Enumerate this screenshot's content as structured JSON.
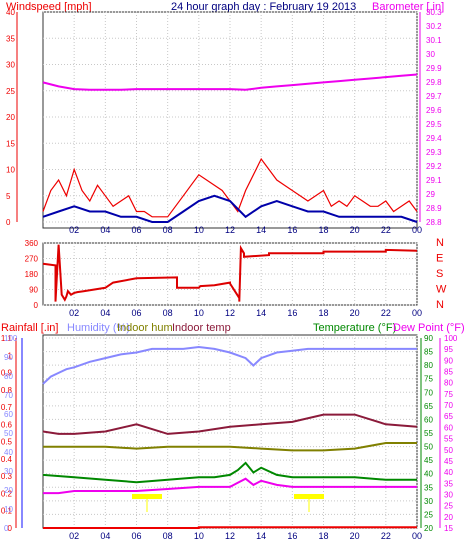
{
  "header": {
    "left": "Windspeed [mph]",
    "center": "24 hour graph day : February 19 2013",
    "right": "Barometer [.in]"
  },
  "legend_bottom": {
    "rainfall": "Rainfall [.in]",
    "humidity": "Humidity (%)",
    "indoor_hum": "Indoor hum",
    "indoor_temp": "Indoor temp",
    "temperature": "Temperature (°F)",
    "dew_point": "Dew Point (°F)"
  },
  "colors": {
    "windspeed": "#ee0000",
    "wind_avg": "#0000aa",
    "barometer": "#ee00ee",
    "direction": "#dd0000",
    "rainfall": "#ee0000",
    "humidity": "#8888ff",
    "indoor_hum": "#808000",
    "indoor_temp": "#8b1a3a",
    "temperature": "#008800",
    "dew_point": "#ee00ee",
    "title": "#000080",
    "marker": "#ffff00"
  },
  "chart_data": [
    {
      "type": "line",
      "title": "24 hour graph day : February 19 2013",
      "x_ticks": [
        "02",
        "04",
        "06",
        "08",
        "10",
        "12",
        "14",
        "16",
        "18",
        "20",
        "22",
        "00"
      ],
      "axes": {
        "left": {
          "label": "Windspeed [mph]",
          "ticks": [
            "0",
            "5",
            "10",
            "15",
            "20",
            "25",
            "30",
            "35",
            "40"
          ],
          "ylim": [
            0,
            40
          ]
        },
        "right": {
          "label": "Barometer [.in]",
          "ticks": [
            "28.8",
            "28.9",
            "29",
            "29.1",
            "29.2",
            "29.3",
            "29.4",
            "29.5",
            "29.6",
            "29.7",
            "29.8",
            "29.9",
            "30",
            "30.1",
            "30.2",
            "30.3"
          ],
          "ylim": [
            28.78,
            30.36
          ]
        }
      },
      "series": [
        {
          "key": "barometer",
          "axis": "right",
          "x": [
            0,
            1,
            2,
            3,
            4,
            5,
            6,
            7,
            8,
            9,
            10,
            11,
            12,
            13,
            14,
            15,
            16,
            17,
            18,
            19,
            20,
            21,
            22,
            23,
            24
          ],
          "values": [
            29.83,
            29.8,
            29.78,
            29.775,
            29.775,
            29.775,
            29.78,
            29.78,
            29.78,
            29.78,
            29.78,
            29.78,
            29.78,
            29.775,
            29.79,
            29.8,
            29.81,
            29.82,
            29.83,
            29.84,
            29.85,
            29.86,
            29.87,
            29.88,
            29.89
          ]
        },
        {
          "key": "windspeed",
          "axis": "left",
          "x": [
            0,
            0.5,
            1,
            1.5,
            2,
            2.5,
            3,
            3.5,
            4,
            4.5,
            5,
            5.5,
            6,
            6.5,
            7,
            7.5,
            8,
            8.5,
            9,
            9.5,
            10,
            10.5,
            11,
            11.5,
            12,
            12.5,
            13,
            13.5,
            14,
            14.5,
            15,
            15.5,
            16,
            16.5,
            17,
            17.5,
            18,
            18.5,
            19,
            19.5,
            20,
            20.5,
            21,
            21.5,
            22,
            22.5,
            23,
            23.5,
            24
          ],
          "values": [
            2,
            6,
            8,
            5,
            10,
            6,
            4,
            7,
            5,
            3,
            4,
            5,
            2,
            2,
            1,
            1,
            1,
            3,
            5,
            7,
            9,
            8,
            7,
            6,
            4,
            2,
            6,
            9,
            12,
            10,
            8,
            7,
            6,
            5,
            4,
            5,
            6,
            3,
            4,
            3,
            5,
            4,
            3,
            3,
            4,
            2,
            3,
            4,
            2
          ]
        },
        {
          "key": "wind_avg",
          "axis": "left",
          "x": [
            0,
            1,
            2,
            3,
            4,
            5,
            6,
            7,
            8,
            9,
            10,
            11,
            12,
            13,
            14,
            15,
            16,
            17,
            18,
            19,
            20,
            21,
            22,
            23,
            24
          ],
          "values": [
            1,
            2,
            3,
            2,
            2,
            1,
            1,
            0,
            0,
            2,
            4,
            5,
            4,
            1,
            3,
            4,
            3,
            2,
            2,
            1,
            1,
            1,
            1,
            1,
            0
          ]
        }
      ]
    },
    {
      "type": "line",
      "title": "",
      "x_ticks": [
        "02",
        "04",
        "06",
        "08",
        "10",
        "12",
        "14",
        "16",
        "18",
        "20",
        "22",
        "00"
      ],
      "axes": {
        "left": {
          "label": "",
          "ticks": [
            "0",
            "90",
            "180",
            "270",
            "360"
          ],
          "ylim": [
            0,
            360
          ]
        },
        "right": {
          "label": "",
          "ticks": [
            "N",
            "W",
            "S",
            "E",
            "N"
          ]
        }
      },
      "series": [
        {
          "key": "direction",
          "axis": "left",
          "x": [
            0,
            0.8,
            0.8,
            1,
            1.2,
            1.4,
            1.5,
            1.6,
            1.8,
            2,
            2.2,
            2.6,
            2.6,
            4,
            4.5,
            4.5,
            6,
            6,
            8.6,
            8.6,
            10,
            10.1,
            11,
            12,
            12,
            12.6,
            12.6,
            12.7,
            12.9,
            12.9,
            14.5,
            14.5,
            18,
            18,
            22,
            22,
            24
          ],
          "values": [
            240,
            230,
            20,
            350,
            60,
            30,
            50,
            80,
            60,
            70,
            75,
            80,
            80,
            100,
            130,
            130,
            155,
            155,
            160,
            100,
            100,
            110,
            115,
            130,
            125,
            40,
            20,
            330,
            300,
            280,
            290,
            300,
            300,
            310,
            310,
            320,
            315
          ]
        }
      ]
    },
    {
      "type": "line",
      "title": "",
      "x_ticks": [
        "02",
        "04",
        "06",
        "08",
        "10",
        "12",
        "14",
        "16",
        "18",
        "20",
        "22",
        "00"
      ],
      "axes": {
        "left_rain": {
          "label": "Rainfall [.in]",
          "ticks": [
            "0",
            "0.1",
            "0.2",
            "0.3",
            "0.4",
            "0.5",
            "0.6",
            "0.7",
            "0.8",
            "0.9",
            "1",
            "1.1"
          ],
          "ylim": [
            0,
            1.15
          ]
        },
        "left_humidity": {
          "label": "Humidity (%)",
          "ticks": [
            "0",
            "10",
            "20",
            "30",
            "40",
            "50",
            "60",
            "70",
            "80",
            "90",
            "100"
          ],
          "ylim": [
            0,
            104.5
          ]
        },
        "right_temp": {
          "label": "Temperature (°F)",
          "ticks": [
            "20",
            "25",
            "30",
            "35",
            "40",
            "45",
            "50",
            "55",
            "60",
            "65",
            "70",
            "75",
            "80",
            "85",
            "90"
          ],
          "ylim": [
            13,
            93
          ]
        },
        "right_dew": {
          "label": "Dew Point (°F)",
          "ticks": [
            "15",
            "20",
            "25",
            "30",
            "35",
            "40",
            "45",
            "50",
            "55",
            "60",
            "65",
            "70",
            "75",
            "80",
            "85",
            "90",
            "95",
            "100"
          ],
          "ylim": [
            10,
            104
          ]
        }
      },
      "series": [
        {
          "name": "Humidity (%)",
          "key": "humidity",
          "axis": "left_humidity",
          "x": [
            0,
            0.5,
            1,
            1.5,
            2,
            3,
            4,
            5,
            6,
            7,
            8,
            9,
            10,
            11,
            12,
            13,
            13.5,
            14,
            15,
            16,
            17,
            18,
            19,
            20,
            21,
            22,
            23,
            24
          ],
          "values": [
            78,
            82,
            84,
            86,
            87,
            90,
            92,
            94,
            95,
            97,
            97,
            97,
            98,
            97,
            95,
            92,
            88,
            92,
            95,
            96,
            97,
            97,
            97,
            97,
            97,
            97,
            97,
            97
          ]
        },
        {
          "name": "Indoor hum",
          "key": "indoor_hum",
          "axis": "left_humidity",
          "x": [
            0,
            2,
            4,
            6,
            8,
            10,
            12,
            14,
            16,
            18,
            20,
            22,
            24
          ],
          "values": [
            44,
            44,
            44,
            43,
            44,
            44,
            44,
            43,
            42,
            42,
            43,
            46,
            46
          ]
        },
        {
          "name": "Indoor temp",
          "key": "indoor_temp",
          "axis": "right_temp",
          "x": [
            0,
            1,
            2,
            4,
            6,
            8,
            10,
            12,
            14,
            16,
            18,
            19,
            20,
            21,
            22,
            24
          ],
          "values": [
            53,
            52,
            52,
            53,
            56,
            52,
            53,
            55,
            56,
            57,
            60,
            60,
            60,
            58,
            56,
            55
          ]
        },
        {
          "name": "Temperature (°F)",
          "key": "temperature",
          "axis": "right_temp",
          "x": [
            0,
            2,
            4,
            6,
            8,
            10,
            11,
            12,
            12.5,
            13,
            13.5,
            14,
            15,
            16,
            18,
            20,
            22,
            24
          ],
          "values": [
            35,
            34,
            33,
            32,
            33,
            34,
            34,
            35,
            37,
            40,
            36,
            38,
            35,
            34,
            34,
            34,
            33,
            33
          ]
        },
        {
          "name": "Dew Point (°F)",
          "key": "dew_point",
          "axis": "right_dew",
          "x": [
            0,
            1,
            2,
            4,
            6,
            8,
            10,
            12,
            12.5,
            13,
            13.5,
            14,
            15,
            16,
            18,
            20,
            22,
            24
          ],
          "values": [
            27,
            27,
            28,
            28,
            28,
            29,
            30,
            30,
            32,
            34,
            31,
            33,
            31,
            30,
            30,
            30,
            30,
            30
          ]
        },
        {
          "name": "Rainfall [.in]",
          "key": "rainfall",
          "axis": "left_rain",
          "x": [
            0,
            10,
            10,
            24
          ],
          "values": [
            0,
            0,
            0.005,
            0.005
          ]
        }
      ]
    }
  ]
}
